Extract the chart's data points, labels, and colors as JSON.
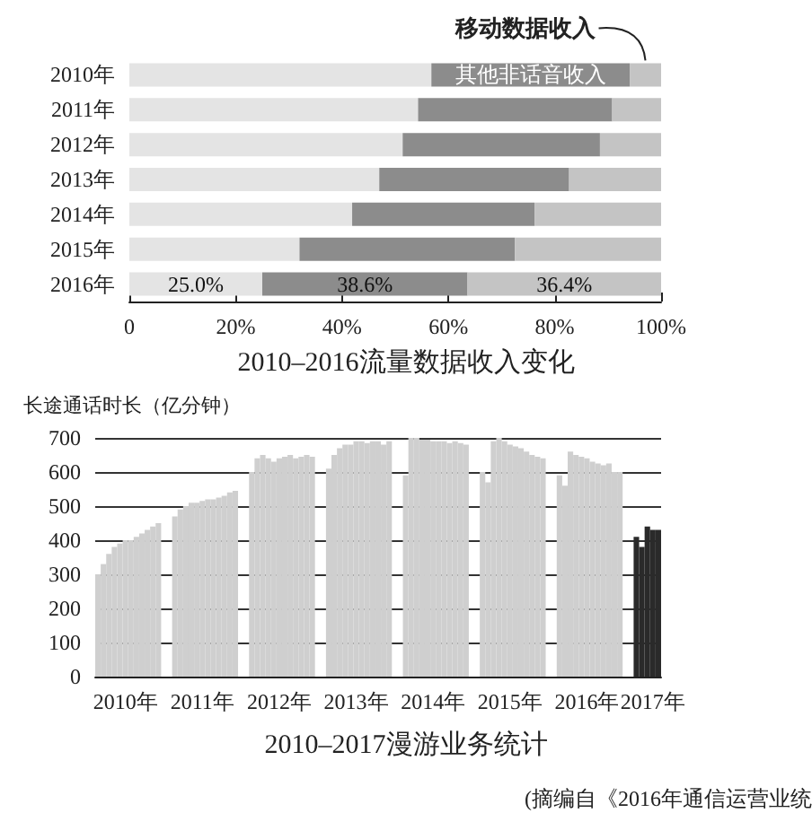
{
  "chart_data": [
    {
      "type": "bar",
      "orientation": "horizontal",
      "stacked": true,
      "title": "2010–2016流量数据收入变化",
      "categories": [
        "2010年",
        "2011年",
        "2012年",
        "2013年",
        "2014年",
        "2015年",
        "2016年"
      ],
      "series": [
        {
          "color": "#e4e4e4",
          "values": [
            56.8,
            54.3,
            51.4,
            47.0,
            41.9,
            32.0,
            25.0
          ],
          "value_labels": [
            null,
            null,
            null,
            null,
            null,
            null,
            "25.0%"
          ]
        },
        {
          "name": "其他非话音收入",
          "color": "#8c8c8c",
          "values": [
            37.3,
            36.5,
            37.1,
            35.7,
            34.3,
            40.5,
            38.6
          ],
          "value_labels": [
            null,
            null,
            null,
            null,
            null,
            null,
            "38.6%"
          ]
        },
        {
          "name": "移动数据收入",
          "color": "#c4c4c4",
          "values": [
            5.9,
            9.2,
            11.5,
            17.3,
            23.8,
            27.5,
            36.4
          ],
          "value_labels": [
            null,
            null,
            null,
            null,
            null,
            null,
            "36.4%"
          ]
        }
      ],
      "xlim": [
        0,
        100
      ],
      "xticks": [
        0,
        {
          "value": 20,
          "label": "20%"
        },
        {
          "value": 40,
          "label": "40%"
        },
        {
          "value": 60,
          "label": "60%"
        },
        {
          "value": 80,
          "label": "80%"
        },
        {
          "value": 100,
          "label": "100%"
        }
      ],
      "grid": false,
      "legend": false
    },
    {
      "type": "bar",
      "title": "2010–2017漫游业务统计",
      "ylabel": "长途通话时长（亿分钟）",
      "annotations": [
        "(摘编自《2016年通信运营业统"
      ],
      "categories": [
        null,
        null,
        null,
        null,
        null,
        "2010年",
        null,
        null,
        null,
        null,
        null,
        null,
        null,
        null,
        null,
        null,
        null,
        null,
        null,
        "2011年",
        null,
        null,
        null,
        null,
        null,
        null,
        null,
        null,
        null,
        null,
        null,
        null,
        null,
        "2012年",
        null,
        null,
        null,
        null,
        null,
        null,
        null,
        null,
        null,
        null,
        null,
        null,
        null,
        "2013年",
        null,
        null,
        null,
        null,
        null,
        null,
        null,
        null,
        null,
        null,
        null,
        null,
        null,
        "2014年",
        null,
        null,
        null,
        null,
        null,
        null,
        null,
        null,
        null,
        null,
        null,
        null,
        null,
        "2015年",
        null,
        null,
        null,
        null,
        null,
        null,
        null,
        null,
        null,
        null,
        null,
        null,
        null,
        "2016年",
        null,
        null,
        null,
        null,
        null,
        null,
        null,
        null,
        null,
        null,
        null,
        "2017年",
        null
      ],
      "values": [
        300,
        330,
        360,
        380,
        390,
        400,
        400,
        410,
        420,
        430,
        440,
        450,
        null,
        null,
        470,
        490,
        500,
        510,
        510,
        515,
        520,
        520,
        525,
        530,
        540,
        545,
        null,
        null,
        600,
        640,
        650,
        640,
        630,
        640,
        645,
        650,
        640,
        645,
        650,
        645,
        null,
        null,
        610,
        650,
        670,
        680,
        680,
        690,
        690,
        685,
        690,
        690,
        680,
        690,
        null,
        null,
        590,
        700,
        700,
        695,
        695,
        690,
        690,
        690,
        685,
        690,
        685,
        680,
        null,
        null,
        600,
        570,
        690,
        700,
        690,
        680,
        675,
        670,
        660,
        650,
        645,
        640,
        null,
        null,
        590,
        560,
        660,
        650,
        645,
        640,
        630,
        625,
        620,
        625,
        600,
        600,
        null,
        null,
        410,
        380,
        440,
        430,
        430
      ],
      "colors": [
        "#cfcfcf",
        "#cfcfcf",
        "#cfcfcf",
        "#cfcfcf",
        "#cfcfcf",
        "#cfcfcf",
        "#cfcfcf",
        "#cfcfcf",
        "#cfcfcf",
        "#cfcfcf",
        "#cfcfcf",
        "#cfcfcf",
        null,
        null,
        "#cfcfcf",
        "#cfcfcf",
        "#cfcfcf",
        "#cfcfcf",
        "#cfcfcf",
        "#cfcfcf",
        "#cfcfcf",
        "#cfcfcf",
        "#cfcfcf",
        "#cfcfcf",
        "#cfcfcf",
        "#cfcfcf",
        null,
        null,
        "#cfcfcf",
        "#cfcfcf",
        "#cfcfcf",
        "#cfcfcf",
        "#cfcfcf",
        "#cfcfcf",
        "#cfcfcf",
        "#cfcfcf",
        "#cfcfcf",
        "#cfcfcf",
        "#cfcfcf",
        "#cfcfcf",
        null,
        null,
        "#cfcfcf",
        "#cfcfcf",
        "#cfcfcf",
        "#cfcfcf",
        "#cfcfcf",
        "#cfcfcf",
        "#cfcfcf",
        "#cfcfcf",
        "#cfcfcf",
        "#cfcfcf",
        "#cfcfcf",
        "#cfcfcf",
        null,
        null,
        "#cfcfcf",
        "#cfcfcf",
        "#cfcfcf",
        "#cfcfcf",
        "#cfcfcf",
        "#cfcfcf",
        "#cfcfcf",
        "#cfcfcf",
        "#cfcfcf",
        "#cfcfcf",
        "#cfcfcf",
        "#cfcfcf",
        null,
        null,
        "#cfcfcf",
        "#cfcfcf",
        "#cfcfcf",
        "#cfcfcf",
        "#cfcfcf",
        "#cfcfcf",
        "#cfcfcf",
        "#cfcfcf",
        "#cfcfcf",
        "#cfcfcf",
        "#cfcfcf",
        "#cfcfcf",
        null,
        null,
        "#cfcfcf",
        "#cfcfcf",
        "#cfcfcf",
        "#cfcfcf",
        "#cfcfcf",
        "#cfcfcf",
        "#cfcfcf",
        "#cfcfcf",
        "#cfcfcf",
        "#cfcfcf",
        "#cfcfcf",
        "#cfcfcf",
        null,
        null,
        "#2a2a2a",
        "#2a2a2a",
        "#2a2a2a",
        "#2a2a2a",
        "#2a2a2a"
      ],
      "ylim": [
        0,
        700
      ],
      "yticks": [
        0,
        100,
        200,
        300,
        400,
        500,
        600,
        700
      ],
      "grid": "y",
      "legend": false
    }
  ]
}
